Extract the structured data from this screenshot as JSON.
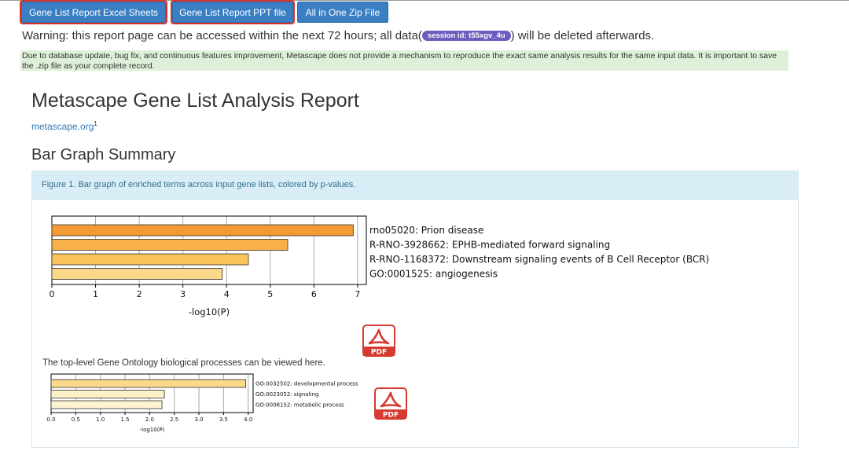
{
  "buttons": {
    "excel": "Gene List Report Excel Sheets",
    "ppt": "Gene List Report PPT file",
    "zip": "All in One Zip File"
  },
  "warning": {
    "prefix": "Warning: this report page can be accessed within the next 72 hours; all data(",
    "session": "session id: t55xgv_4u",
    "suffix": ") will be deleted afterwards."
  },
  "notice": "Due to database update, bug fix, and continuous features improvement, Metascape does not provide a mechanism to reproduce the exact same analysis results for the same input data. It is important to save the .zip file as your complete record.",
  "report_title": "Metascape Gene List Analysis Report",
  "site_link": "metascape.org",
  "site_link_sup": "1",
  "section_title": "Bar Graph Summary",
  "figure_caption": "Figure 1. Bar graph of enriched terms across input gene lists, colored by p-values.",
  "go_note": "The top-level Gene Ontology biological processes can be viewed here.",
  "pdf_label": "PDF",
  "colors": {
    "button": "#3a7fc4",
    "highlight": "#d9342b",
    "session_badge": "#6d5bbd",
    "pdf_icon": "#d63a30"
  },
  "icons": [
    "pdf-icon"
  ],
  "chart_data": [
    {
      "type": "bar",
      "orientation": "horizontal",
      "categories": [
        "rno05020: Prion disease",
        "R-RNO-3928662: EPHB-mediated forward signaling",
        "R-RNO-1168372: Downstream signaling events of B Cell Receptor (BCR)",
        "GO:0001525: angiogenesis"
      ],
      "values": [
        6.9,
        5.4,
        4.5,
        3.9
      ],
      "colors": [
        "#f39a32",
        "#f7b04a",
        "#f9c35c",
        "#fbd98a"
      ],
      "xlabel": "-log10(P)",
      "xlim": [
        0,
        7.2
      ],
      "xticks": [
        0,
        1,
        2,
        3,
        4,
        5,
        6,
        7
      ],
      "tick_labels": [
        "0",
        "1",
        "2",
        "3",
        "4",
        "5",
        "6",
        "7"
      ],
      "grid": true
    },
    {
      "type": "bar",
      "orientation": "horizontal",
      "categories": [
        "GO:0032502: developmental process",
        "GO:0023052: signaling",
        "GO:0008152: metabolic process"
      ],
      "values": [
        3.95,
        2.3,
        2.25
      ],
      "colors": [
        "#fbd98a",
        "#fdf0c4",
        "#fdf3d0"
      ],
      "xlabel": "-log10(P)",
      "xlim": [
        0,
        4.1
      ],
      "xticks": [
        0,
        0.5,
        1,
        1.5,
        2,
        2.5,
        3,
        3.5,
        4
      ],
      "tick_labels": [
        "0.0",
        "0.5",
        "1.0",
        "1.5",
        "2.0",
        "2.5",
        "3.0",
        "3.5",
        "4.0"
      ],
      "grid": true
    }
  ]
}
